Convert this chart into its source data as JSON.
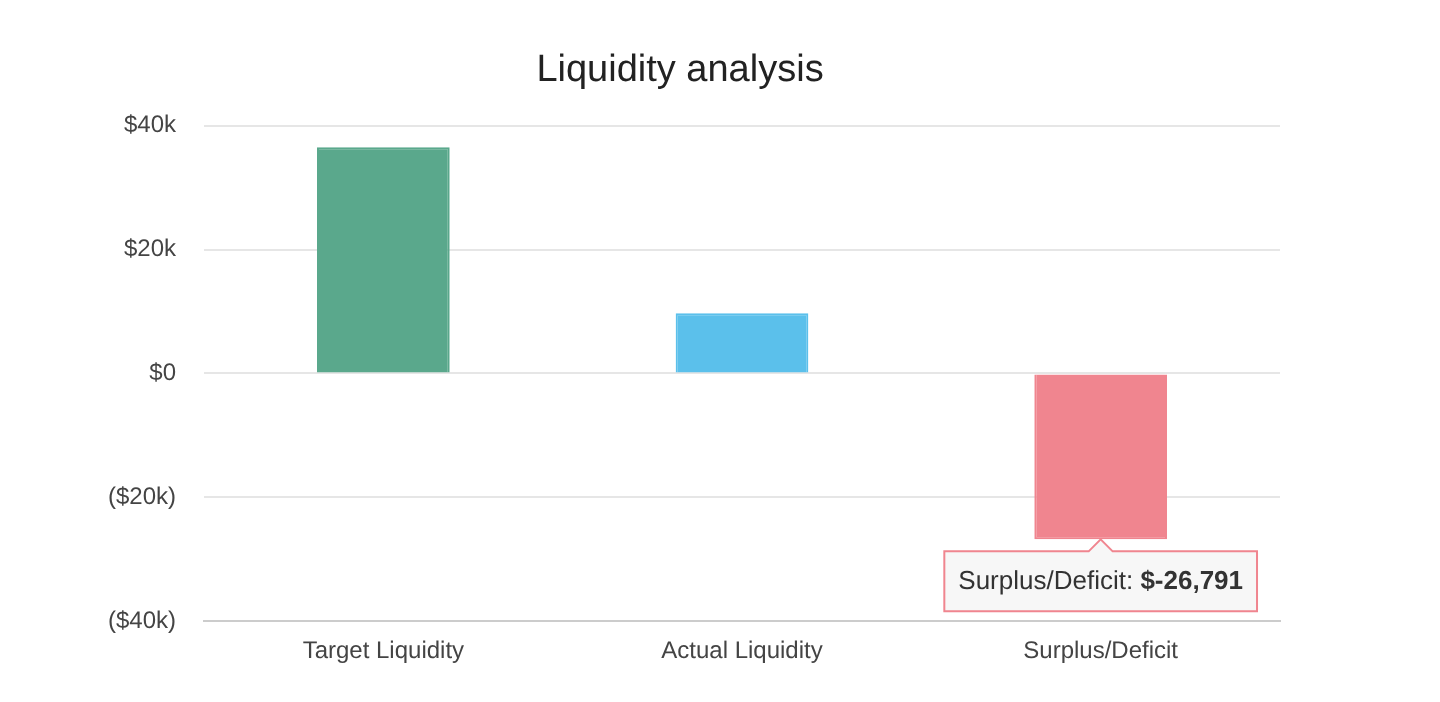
{
  "chart_data": {
    "type": "bar",
    "title": "Liquidity analysis",
    "categories": [
      "Target Liquidity",
      "Actual Liquidity",
      "Surplus/Deficit"
    ],
    "values": [
      36500,
      9700,
      -26791
    ],
    "colors": [
      "#5aa88c",
      "#5bc0eb",
      "#f0858f"
    ],
    "ylim": [
      -40000,
      40000
    ],
    "yticks": [
      {
        "value": -40000,
        "label": "($40k)"
      },
      {
        "value": -20000,
        "label": "($20k)"
      },
      {
        "value": 0,
        "label": "$0"
      },
      {
        "value": 20000,
        "label": "$20k"
      },
      {
        "value": 40000,
        "label": "$40k"
      }
    ],
    "grid": "y",
    "annotations": [
      {
        "text": "Surplus/Deficit: $-26,791",
        "x": "Surplus/Deficit",
        "y": -26791
      }
    ]
  }
}
